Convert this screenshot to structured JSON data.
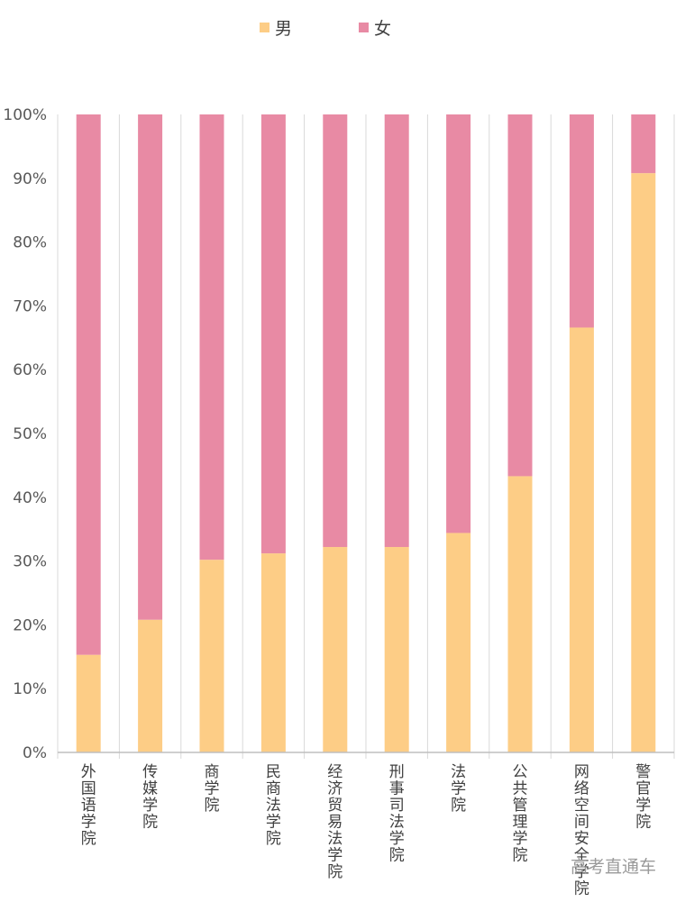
{
  "chart_data": {
    "type": "bar",
    "stacked": true,
    "categories": [
      "外国语学院",
      "传媒学院",
      "商学院",
      "民商法学院",
      "经济贸易法学院",
      "刑事司法学院",
      "法学院",
      "公共管理学院",
      "网络空间安全学院",
      "警官学院"
    ],
    "series": [
      {
        "name": "男",
        "color": "#fdcd86",
        "values": [
          15.3,
          20.8,
          30.2,
          31.2,
          32.2,
          32.2,
          34.4,
          43.3,
          66.6,
          90.8
        ]
      },
      {
        "name": "女",
        "color": "#e88aa4",
        "values": [
          84.7,
          79.2,
          69.8,
          68.8,
          67.8,
          67.8,
          65.6,
          56.7,
          33.4,
          9.2
        ]
      }
    ],
    "ylim": [
      0,
      100
    ],
    "yticks": [
      "0%",
      "10%",
      "20%",
      "30%",
      "40%",
      "50%",
      "60%",
      "70%",
      "80%",
      "90%",
      "100%"
    ],
    "ytick_step": 10,
    "legend": "top",
    "grid": "vertical",
    "title": "",
    "xlabel": "",
    "ylabel": ""
  },
  "watermark": "高考直通车",
  "colors": {
    "gridline": "#d9d9d9",
    "axis": "#bfbfbf"
  }
}
